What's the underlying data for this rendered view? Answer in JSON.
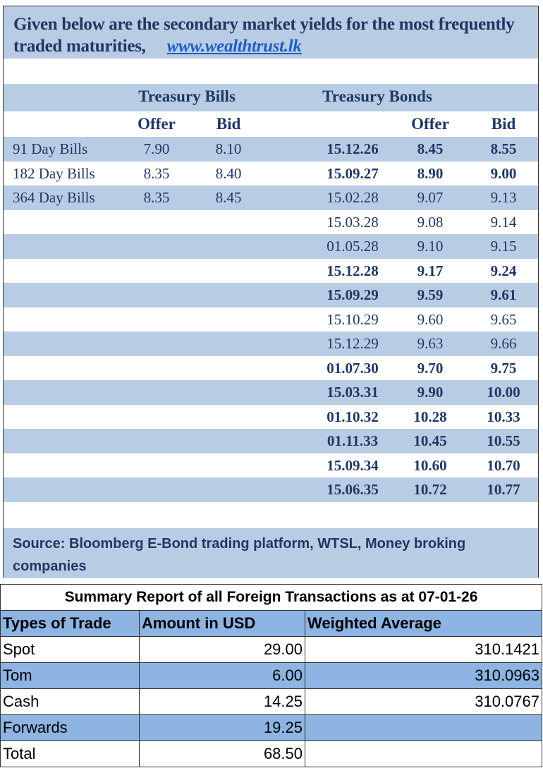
{
  "intro": {
    "text": "Given below are the secondary market yields for the most frequently traded maturities,",
    "link": "www.wealthtrust.lk"
  },
  "headers": {
    "bills": "Treasury Bills",
    "bonds": "Treasury Bonds",
    "offer": "Offer",
    "bid": "Bid"
  },
  "bills": [
    {
      "label": "91 Day Bills",
      "offer": "7.90",
      "bid": "8.10"
    },
    {
      "label": "182 Day Bills",
      "offer": "8.35",
      "bid": "8.40"
    },
    {
      "label": "364 Day Bills",
      "offer": "8.35",
      "bid": "8.45"
    }
  ],
  "bonds": [
    {
      "maturity": "15.12.26",
      "offer": "8.45",
      "bid": "8.55",
      "bold": true
    },
    {
      "maturity": "15.09.27",
      "offer": "8.90",
      "bid": "9.00",
      "bold": true
    },
    {
      "maturity": "15.02.28",
      "offer": "9.07",
      "bid": "9.13",
      "bold": false
    },
    {
      "maturity": "15.03.28",
      "offer": "9.08",
      "bid": "9.14",
      "bold": false
    },
    {
      "maturity": "01.05.28",
      "offer": "9.10",
      "bid": "9.15",
      "bold": false
    },
    {
      "maturity": "15.12.28",
      "offer": "9.17",
      "bid": "9.24",
      "bold": true
    },
    {
      "maturity": "15.09.29",
      "offer": "9.59",
      "bid": "9.61",
      "bold": true
    },
    {
      "maturity": "15.10.29",
      "offer": "9.60",
      "bid": "9.65",
      "bold": false
    },
    {
      "maturity": "15.12.29",
      "offer": "9.63",
      "bid": "9.66",
      "bold": false
    },
    {
      "maturity": "01.07.30",
      "offer": "9.70",
      "bid": "9.75",
      "bold": true
    },
    {
      "maturity": "15.03.31",
      "offer": "9.90",
      "bid": "10.00",
      "bold": true
    },
    {
      "maturity": "01.10.32",
      "offer": "10.28",
      "bid": "10.33",
      "bold": true
    },
    {
      "maturity": "01.11.33",
      "offer": "10.45",
      "bid": "10.55",
      "bold": true
    },
    {
      "maturity": "15.09.34",
      "offer": "10.60",
      "bid": "10.70",
      "bold": true
    },
    {
      "maturity": "15.06.35",
      "offer": "10.72",
      "bid": "10.77",
      "bold": true
    }
  ],
  "source": "Source: Bloomberg E-Bond trading platform, WTSL, Money broking companies",
  "fx": {
    "title": "Summary Report of all Foreign Transactions as at 07-01-26",
    "columns": [
      "Types of Trade",
      "Amount in USD",
      "Weighted Average"
    ],
    "rows": [
      [
        "Spot",
        "29.00",
        "310.1421"
      ],
      [
        "Tom",
        "6.00",
        "310.0963"
      ],
      [
        "Cash",
        "14.25",
        "310.0767"
      ],
      [
        "Forwards",
        "19.25",
        ""
      ],
      [
        "Total",
        "68.50",
        ""
      ]
    ]
  }
}
